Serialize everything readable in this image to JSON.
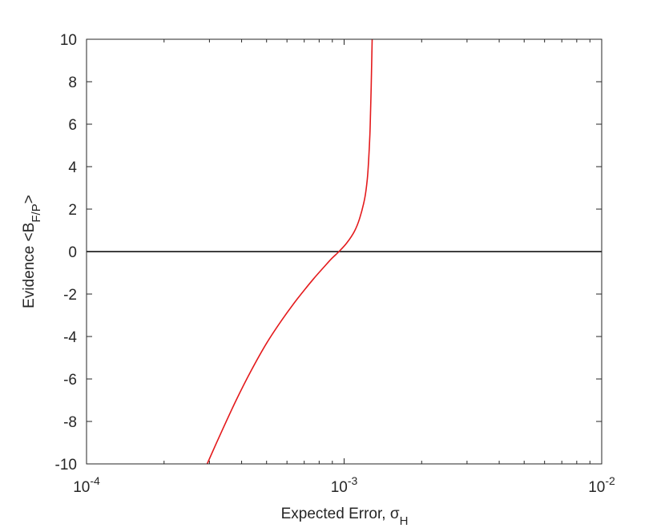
{
  "chart_data": {
    "type": "line",
    "xscale": "log",
    "xlim": [
      0.0001,
      0.01
    ],
    "ylim": [
      -10,
      10
    ],
    "xlabel": "Expected Error, σ",
    "xlabel_subscript": "H",
    "ylabel": "Evidence <B",
    "ylabel_subscript": "F/P",
    "ylabel_suffix": ">",
    "x_ticks": [
      {
        "value": 0.0001,
        "base": "10",
        "exp": "-4"
      },
      {
        "value": 0.001,
        "base": "10",
        "exp": "-3"
      },
      {
        "value": 0.01,
        "base": "10",
        "exp": "-2"
      }
    ],
    "y_ticks": [
      {
        "value": -10,
        "label": "-10"
      },
      {
        "value": -8,
        "label": "-8"
      },
      {
        "value": -6,
        "label": "-6"
      },
      {
        "value": -4,
        "label": "-4"
      },
      {
        "value": -2,
        "label": "-2"
      },
      {
        "value": 0,
        "label": "0"
      },
      {
        "value": 2,
        "label": "2"
      },
      {
        "value": 4,
        "label": "4"
      },
      {
        "value": 6,
        "label": "6"
      },
      {
        "value": 8,
        "label": "8"
      },
      {
        "value": 10,
        "label": "10"
      }
    ],
    "reference_line": {
      "y": 0,
      "color": "#000000"
    },
    "series": [
      {
        "color": "#e41a1c",
        "x": [
          0.000294,
          0.000331,
          0.000381,
          0.000436,
          0.000501,
          0.000575,
          0.000661,
          0.000759,
          0.000832,
          0.000891,
          0.000955,
          0.001023,
          0.001096,
          0.001148,
          0.001202,
          0.00123,
          0.001245,
          0.001259,
          0.001266,
          0.001274,
          0.00128,
          0.001285
        ],
        "y": [
          -10.0,
          -8.6,
          -7.0,
          -5.6,
          -4.3,
          -3.2,
          -2.2,
          -1.3,
          -0.75,
          -0.35,
          0.0,
          0.4,
          0.95,
          1.55,
          2.5,
          3.4,
          4.3,
          5.5,
          6.5,
          7.8,
          9.0,
          10.0
        ]
      }
    ],
    "grid": false,
    "legend": "none"
  }
}
